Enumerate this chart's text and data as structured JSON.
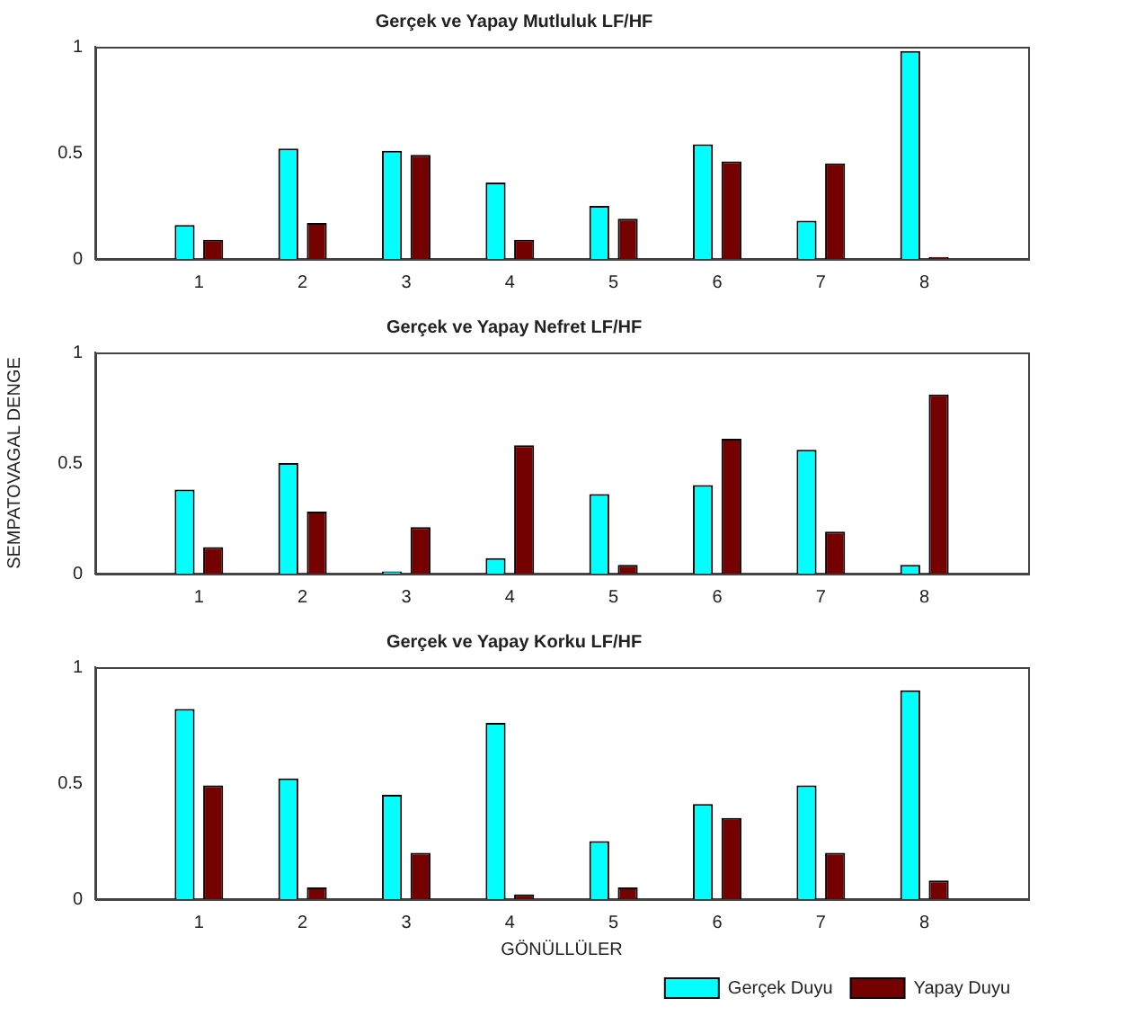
{
  "chart_data": [
    {
      "type": "bar",
      "title": "Gerçek ve Yapay Mutluluk LF/HF",
      "x": [
        1,
        2,
        3,
        4,
        5,
        6,
        7,
        8
      ],
      "xlim": [
        0,
        9
      ],
      "xticks": [
        1,
        2,
        3,
        4,
        5,
        6,
        7,
        8
      ],
      "ylim": [
        0,
        1
      ],
      "yticks": [
        0,
        0.5,
        1
      ],
      "grid": false,
      "legend": false,
      "series": [
        {
          "color": "#00ffff",
          "values": [
            0.16,
            0.52,
            0.51,
            0.36,
            0.25,
            0.54,
            0.18,
            0.98
          ]
        },
        {
          "color": "#750000",
          "values": [
            0.09,
            0.17,
            0.49,
            0.09,
            0.19,
            0.46,
            0.45,
            0.01
          ]
        }
      ]
    },
    {
      "type": "bar",
      "title": "Gerçek ve Yapay Nefret LF/HF",
      "ylabel": "SEMPATOVAGAL DENGE",
      "x": [
        1,
        2,
        3,
        4,
        5,
        6,
        7,
        8
      ],
      "xlim": [
        0,
        9
      ],
      "xticks": [
        1,
        2,
        3,
        4,
        5,
        6,
        7,
        8
      ],
      "ylim": [
        0,
        1
      ],
      "yticks": [
        0,
        0.5,
        1
      ],
      "grid": false,
      "legend": false,
      "series": [
        {
          "color": "#00ffff",
          "values": [
            0.38,
            0.5,
            0.01,
            0.07,
            0.36,
            0.4,
            0.56,
            0.04
          ]
        },
        {
          "color": "#750000",
          "values": [
            0.12,
            0.28,
            0.21,
            0.58,
            0.04,
            0.61,
            0.19,
            0.81
          ]
        }
      ]
    },
    {
      "type": "bar",
      "title": "Gerçek ve Yapay Korku LF/HF",
      "xlabel": "GÖNÜLLÜLER",
      "x": [
        1,
        2,
        3,
        4,
        5,
        6,
        7,
        8
      ],
      "xlim": [
        0,
        9
      ],
      "xticks": [
        1,
        2,
        3,
        4,
        5,
        6,
        7,
        8
      ],
      "ylim": [
        0,
        1
      ],
      "yticks": [
        0,
        0.5,
        1
      ],
      "grid": false,
      "legend": "bottom right",
      "series": [
        {
          "name": "Gerçek Duyu",
          "color": "#00ffff",
          "values": [
            0.82,
            0.52,
            0.45,
            0.76,
            0.25,
            0.41,
            0.49,
            0.9
          ]
        },
        {
          "name": "Yapay Duyu",
          "color": "#750000",
          "values": [
            0.49,
            0.05,
            0.2,
            0.02,
            0.05,
            0.35,
            0.2,
            0.08
          ]
        }
      ]
    }
  ]
}
